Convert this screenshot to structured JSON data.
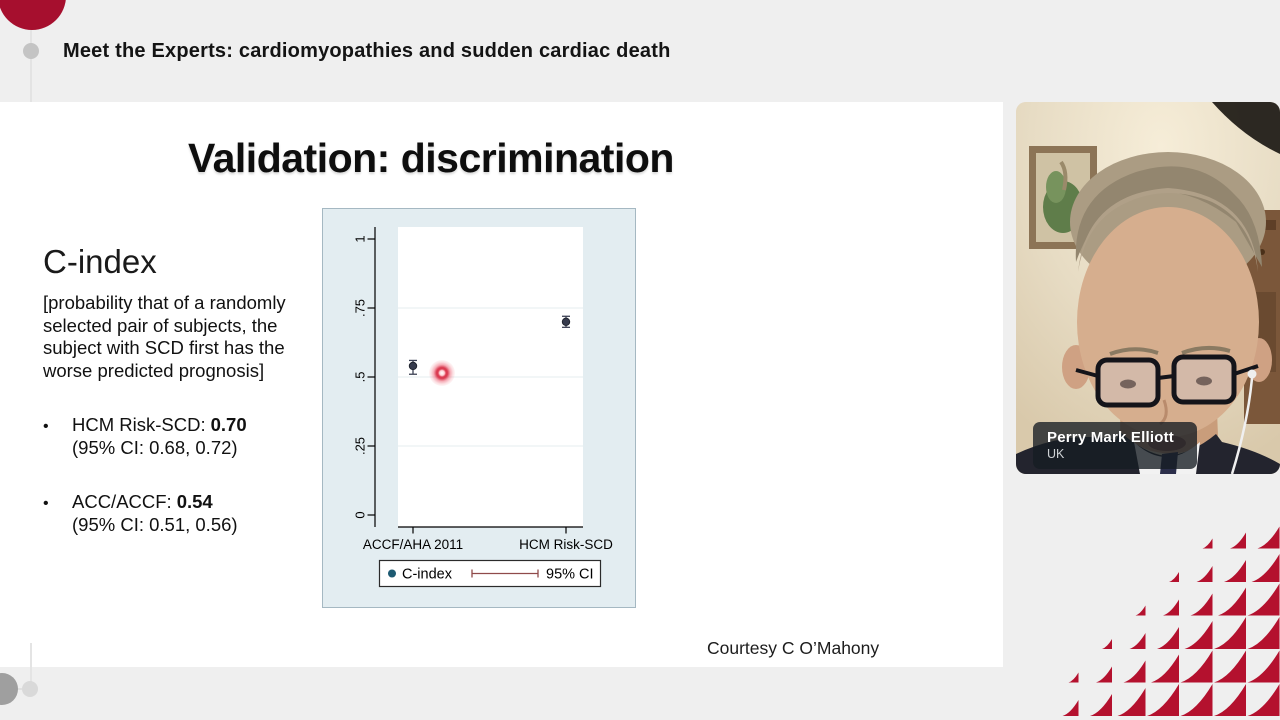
{
  "header": {
    "title": "Meet the Experts: cardiomyopathies and sudden cardiac death"
  },
  "slide": {
    "title": "Validation: discrimination",
    "heading": "C-index",
    "definition": "[probability that of a randomly selected pair of subjects, the subject with SCD first has the worse predicted prognosis]",
    "bullet_marker": "•",
    "bullets": [
      {
        "label": "HCM Risk-SCD:",
        "value": "0.70",
        "ci": "(95% CI: 0.68, 0.72)"
      },
      {
        "label": "ACC/ACCF:",
        "value": "0.54",
        "ci": "(95% CI: 0.51, 0.56)"
      }
    ],
    "courtesy": "Courtesy C O’Mahony"
  },
  "chart_data": {
    "type": "scatter",
    "categories": [
      "ACCF/AHA 2011",
      "HCM Risk-SCD"
    ],
    "series": [
      {
        "name": "C-index",
        "values": [
          0.54,
          0.7
        ],
        "ci_low": [
          0.51,
          0.68
        ],
        "ci_high": [
          0.56,
          0.72
        ]
      }
    ],
    "ylim": [
      0,
      1
    ],
    "yticks": [
      0,
      0.25,
      0.5,
      0.75,
      1
    ],
    "ytick_labels": [
      "0",
      ".25",
      ".5",
      ".75",
      "1"
    ],
    "legend": [
      "C-index",
      "95% CI"
    ],
    "legend_position": "bottom",
    "grid": true,
    "colors": {
      "marker": "#363b4d",
      "whisker": "#3c4154",
      "legend_dot": "#1d5a72",
      "ci_line": "#8f4a4a",
      "plot_bg": "#ffffff",
      "outer_bg": "#e3edf1",
      "border": "#a5b8c2",
      "gridline": "#e4ecef"
    }
  },
  "video": {
    "speaker_name": "Perry Mark Elliott",
    "speaker_country": "UK"
  },
  "brand": {
    "accent_red": "#a60f2e",
    "pattern_red": "#b4112e"
  }
}
